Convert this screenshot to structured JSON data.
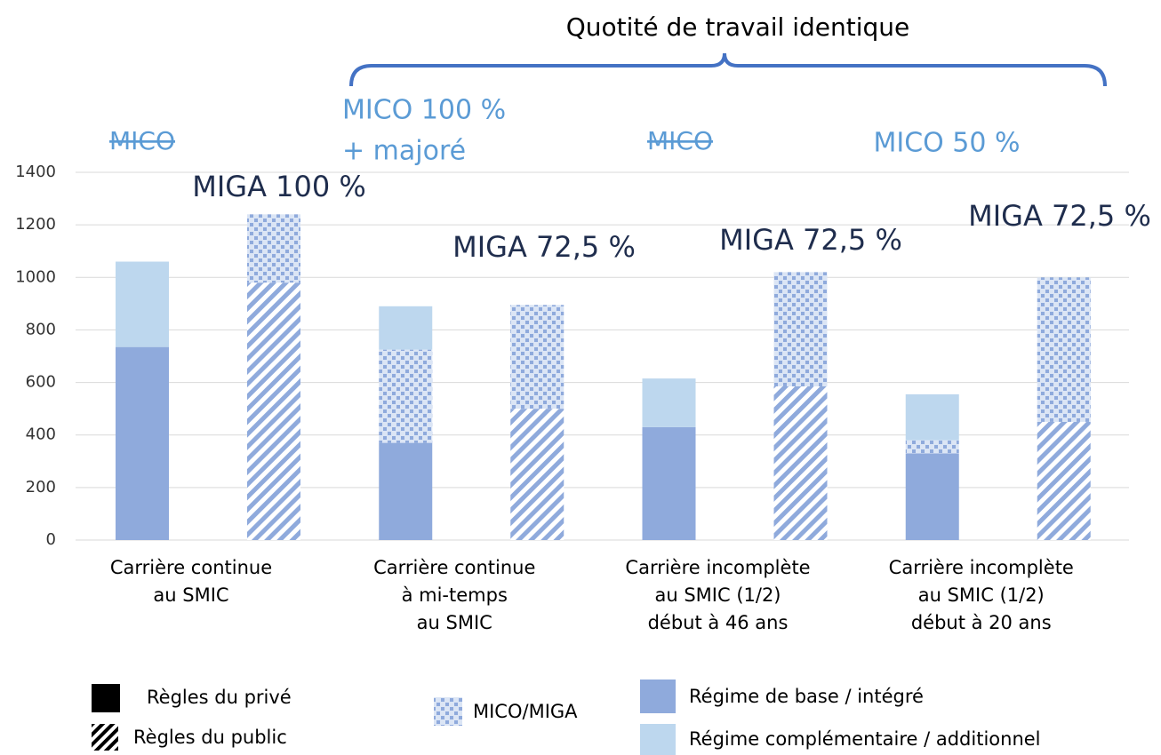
{
  "chart_data": {
    "type": "bar",
    "title": "Quotité de travail identique",
    "categories": [
      [
        "Carrière continue",
        "au SMIC"
      ],
      [
        "Carrière continue",
        "à mi-temps",
        "au SMIC"
      ],
      [
        "Carrière incomplète",
        "au SMIC (1/2)",
        "début à 46 ans"
      ],
      [
        "Carrière incomplète",
        "au SMIC (1/2)",
        "début à 20 ans"
      ]
    ],
    "segments": [
      {
        "name": "Régime de base / intégré",
        "color": "#8faadc"
      },
      {
        "name": "MICO/MIGA",
        "color": "#8faadc",
        "pattern": "dots"
      },
      {
        "name": "Régime complémentaire / additionnel",
        "color": "#bdd7ee"
      }
    ],
    "bars": [
      {
        "name": "Règles du privé",
        "style": "solid",
        "values": [
          [
            735,
            370,
            430,
            330
          ],
          [
            0,
            355,
            0,
            50
          ],
          [
            325,
            165,
            185,
            175
          ]
        ]
      },
      {
        "name": "Règles du public",
        "style": "hatched",
        "values": [
          [
            980,
            500,
            585,
            450
          ],
          [
            260,
            395,
            435,
            550
          ],
          [
            0,
            0,
            0,
            0
          ]
        ]
      }
    ],
    "annotations": [
      {
        "lines": [
          "MICO"
        ],
        "color": "#5b9bd5",
        "strike": true
      },
      {
        "lines": [
          "MICO 100 %",
          "+ majoré"
        ],
        "color": "#5b9bd5"
      },
      {
        "lines": [
          "MICO"
        ],
        "color": "#5b9bd5",
        "strike": true
      },
      {
        "lines": [
          "MICO 50 %"
        ],
        "color": "#5b9bd5"
      },
      {
        "lines": [
          "MIGA 100 %"
        ],
        "color": "#1f2d4d"
      },
      {
        "lines": [
          "MIGA 72,5 %"
        ],
        "color": "#1f2d4d"
      },
      {
        "lines": [
          "MIGA 72,5 %"
        ],
        "color": "#1f2d4d"
      },
      {
        "lines": [
          "MIGA 72,5 %"
        ],
        "color": "#1f2d4d"
      }
    ],
    "ylim": [
      0,
      1400
    ],
    "yticks": [
      0,
      200,
      400,
      600,
      800,
      1000,
      1200,
      1400
    ],
    "grid": true
  }
}
